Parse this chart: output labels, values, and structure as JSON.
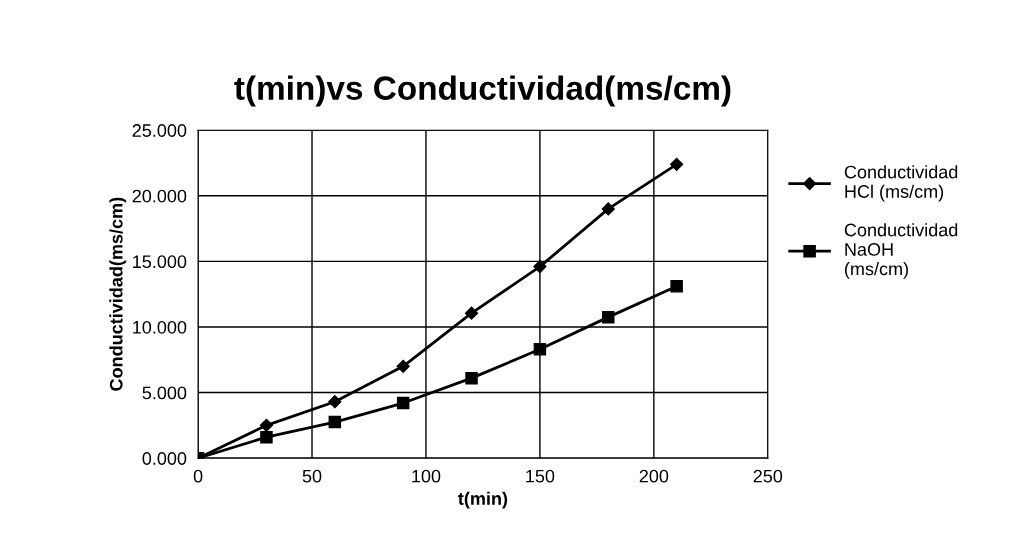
{
  "chart_data": {
    "type": "line",
    "title": "t(min)vs Conductividad(ms/cm)",
    "xlabel": "t(min)",
    "ylabel": "Conductividad(ms/cm)",
    "x": [
      0,
      30,
      60,
      90,
      120,
      150,
      180,
      210
    ],
    "series": [
      {
        "name": "Conductividad\nHCl (ms/cm)",
        "color": "#000000",
        "marker": "diamond",
        "values": [
          0,
          2.5,
          4.3,
          7.0,
          11.05,
          14.6,
          19.0,
          22.4
        ]
      },
      {
        "name": "Conductividad\nNaOH\n(ms/cm)",
        "color": "#000000",
        "marker": "square",
        "values": [
          0,
          1.6,
          2.75,
          4.2,
          6.1,
          8.3,
          10.75,
          13.1
        ]
      }
    ],
    "xlim": [
      0,
      250
    ],
    "xticks": [
      0,
      50,
      100,
      150,
      200,
      250
    ],
    "ylim": [
      0,
      25
    ],
    "yticks": [
      {
        "value": 0,
        "label": "0.000"
      },
      {
        "value": 5,
        "label": "5.000"
      },
      {
        "value": 10,
        "label": "10.000"
      },
      {
        "value": 15,
        "label": "15.000"
      },
      {
        "value": 20,
        "label": "20.000"
      },
      {
        "value": 25,
        "label": "25.000"
      }
    ],
    "grid": true,
    "legend": "right",
    "line_style": "solid"
  }
}
